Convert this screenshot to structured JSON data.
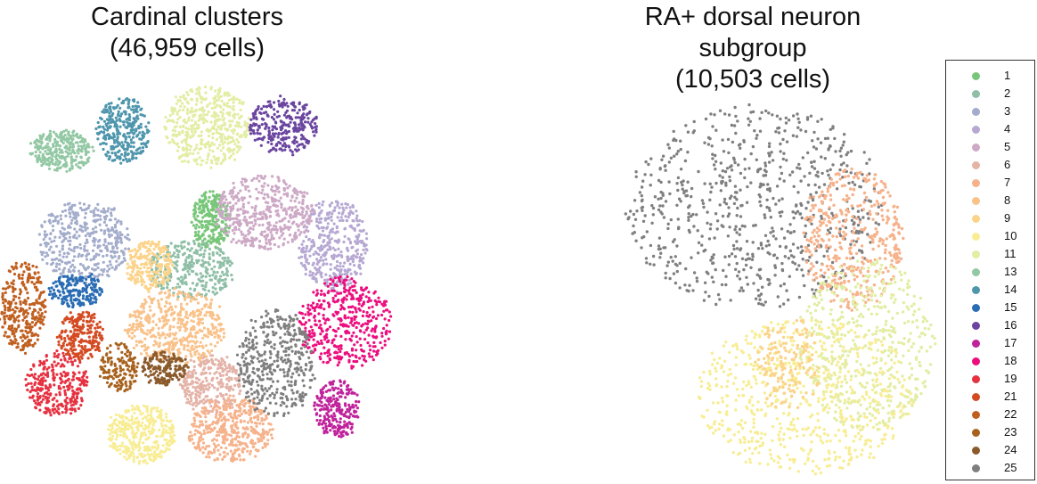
{
  "panels": {
    "left": {
      "title_line1": "Cardinal clusters",
      "title_line2": "(46,959 cells)"
    },
    "right": {
      "title_line1": "RA+ dorsal neuron subgroup",
      "title_line2": "(10,503 cells)"
    }
  },
  "legend": {
    "items": [
      {
        "label": "1",
        "color": "#78c679"
      },
      {
        "label": "2",
        "color": "#8fbfa6"
      },
      {
        "label": "3",
        "color": "#a3accb"
      },
      {
        "label": "4",
        "color": "#b6a8d3"
      },
      {
        "label": "5",
        "color": "#cda9c6"
      },
      {
        "label": "6",
        "color": "#e4b3a8"
      },
      {
        "label": "7",
        "color": "#f6b28b"
      },
      {
        "label": "8",
        "color": "#f9c28a"
      },
      {
        "label": "9",
        "color": "#fbd38a"
      },
      {
        "label": "10",
        "color": "#f8ed94"
      },
      {
        "label": "11",
        "color": "#e3eda3"
      },
      {
        "label": "13",
        "color": "#93c8a4"
      },
      {
        "label": "14",
        "color": "#4f96ad"
      },
      {
        "label": "15",
        "color": "#2b6db4"
      },
      {
        "label": "16",
        "color": "#6a45a0"
      },
      {
        "label": "17",
        "color": "#c0229b"
      },
      {
        "label": "18",
        "color": "#ec0e7f"
      },
      {
        "label": "19",
        "color": "#e63141"
      },
      {
        "label": "21",
        "color": "#d44b22"
      },
      {
        "label": "22",
        "color": "#c06020"
      },
      {
        "label": "23",
        "color": "#a7621d"
      },
      {
        "label": "24",
        "color": "#8b5a2b"
      },
      {
        "label": "25",
        "color": "#7f7f7f"
      }
    ]
  },
  "chart_data": [
    {
      "type": "scatter",
      "title": "Cardinal clusters (46,959 cells)",
      "xlabel": "",
      "ylabel": "",
      "axes": "none",
      "series": [
        {
          "name": "1",
          "points": [
            {
              "x": 0.55,
              "y": 0.63
            }
          ]
        },
        {
          "name": "2",
          "points": [
            {
              "x": 0.5,
              "y": 0.51
            }
          ]
        },
        {
          "name": "3",
          "points": [
            {
              "x": 0.22,
              "y": 0.58
            }
          ]
        },
        {
          "name": "4",
          "points": [
            {
              "x": 0.87,
              "y": 0.57
            }
          ]
        },
        {
          "name": "5",
          "points": [
            {
              "x": 0.69,
              "y": 0.65
            }
          ]
        },
        {
          "name": "6",
          "points": [
            {
              "x": 0.55,
              "y": 0.23
            }
          ]
        },
        {
          "name": "7",
          "points": [
            {
              "x": 0.6,
              "y": 0.12
            }
          ]
        },
        {
          "name": "8",
          "points": [
            {
              "x": 0.46,
              "y": 0.37
            }
          ]
        },
        {
          "name": "9",
          "points": [
            {
              "x": 0.39,
              "y": 0.52
            }
          ]
        },
        {
          "name": "10",
          "points": [
            {
              "x": 0.37,
              "y": 0.11
            }
          ]
        },
        {
          "name": "11",
          "points": [
            {
              "x": 0.54,
              "y": 0.86
            }
          ]
        },
        {
          "name": "13",
          "points": [
            {
              "x": 0.16,
              "y": 0.8
            }
          ]
        },
        {
          "name": "14",
          "points": [
            {
              "x": 0.32,
              "y": 0.85
            }
          ]
        },
        {
          "name": "15",
          "points": [
            {
              "x": 0.2,
              "y": 0.46
            }
          ]
        },
        {
          "name": "16",
          "points": [
            {
              "x": 0.74,
              "y": 0.86
            }
          ]
        },
        {
          "name": "17",
          "points": [
            {
              "x": 0.88,
              "y": 0.17
            }
          ]
        },
        {
          "name": "18",
          "points": [
            {
              "x": 0.9,
              "y": 0.38
            }
          ]
        },
        {
          "name": "19",
          "points": [
            {
              "x": 0.15,
              "y": 0.23
            }
          ]
        },
        {
          "name": "21",
          "points": [
            {
              "x": 0.21,
              "y": 0.35
            }
          ]
        },
        {
          "name": "22",
          "points": [
            {
              "x": 0.06,
              "y": 0.42
            }
          ]
        },
        {
          "name": "23",
          "points": [
            {
              "x": 0.31,
              "y": 0.27
            }
          ]
        },
        {
          "name": "24",
          "points": [
            {
              "x": 0.43,
              "y": 0.27
            }
          ]
        },
        {
          "name": "25",
          "points": [
            {
              "x": 0.72,
              "y": 0.28
            }
          ]
        }
      ]
    },
    {
      "type": "scatter",
      "title": "RA+ dorsal neuron subgroup (10,503 cells)",
      "xlabel": "",
      "ylabel": "",
      "axes": "none",
      "series": [
        {
          "name": "25",
          "points": [
            {
              "x": 0.45,
              "y": 0.7
            }
          ]
        },
        {
          "name": "7",
          "points": [
            {
              "x": 0.74,
              "y": 0.62
            }
          ]
        },
        {
          "name": "10",
          "points": [
            {
              "x": 0.6,
              "y": 0.22
            }
          ]
        },
        {
          "name": "11",
          "points": [
            {
              "x": 0.78,
              "y": 0.35
            }
          ]
        },
        {
          "name": "9",
          "points": [
            {
              "x": 0.55,
              "y": 0.3
            }
          ]
        }
      ]
    }
  ]
}
